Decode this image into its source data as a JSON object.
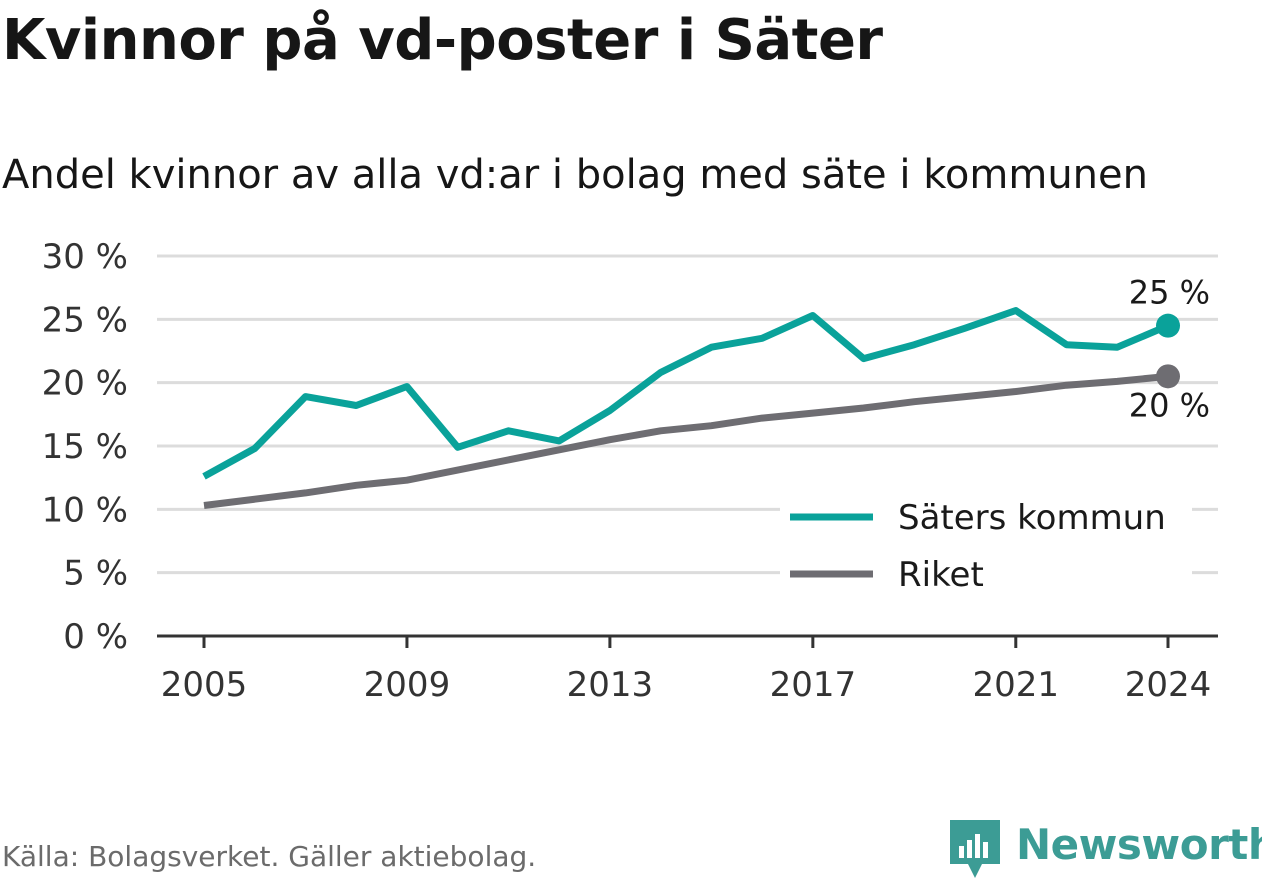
{
  "title": "Kvinnor på vd-poster i Säter",
  "subtitle": "Andel kvinnor av alla vd:ar i bolag med säte i kommunen",
  "source": "Källa: Bolagsverket. Gäller aktiebolag.",
  "brand": "Newsworthy",
  "colors": {
    "kommun": "#0aa29a",
    "riket": "#6e6d72",
    "grid": "#dcdcdc",
    "axis": "#333333",
    "brand": "#3c9c95"
  },
  "chart_data": {
    "type": "line",
    "x": [
      2005,
      2006,
      2007,
      2008,
      2009,
      2010,
      2011,
      2012,
      2013,
      2014,
      2015,
      2016,
      2017,
      2018,
      2019,
      2020,
      2021,
      2022,
      2023,
      2024
    ],
    "series": [
      {
        "name": "Säters kommun",
        "color": "#0aa29a",
        "values": [
          12.6,
          14.8,
          18.9,
          18.2,
          19.7,
          14.9,
          16.2,
          15.4,
          17.8,
          20.8,
          22.8,
          23.5,
          25.3,
          21.9,
          23.0,
          24.3,
          25.7,
          23.0,
          22.8,
          24.5
        ]
      },
      {
        "name": "Riket",
        "color": "#6e6d72",
        "values": [
          10.3,
          10.8,
          11.3,
          11.9,
          12.3,
          13.1,
          13.9,
          14.7,
          15.5,
          16.2,
          16.6,
          17.2,
          17.6,
          18.0,
          18.5,
          18.9,
          19.3,
          19.8,
          20.1,
          20.5
        ]
      }
    ],
    "ylim": [
      0,
      30
    ],
    "y_ticks": [
      0,
      5,
      10,
      15,
      20,
      25,
      30
    ],
    "y_tick_labels": [
      "0 %",
      "5 %",
      "10 %",
      "15 %",
      "20 %",
      "25 %",
      "30 %"
    ],
    "x_ticks": [
      2005,
      2009,
      2013,
      2017,
      2021,
      2024
    ],
    "x_tick_labels": [
      "2005",
      "2009",
      "2013",
      "2017",
      "2021",
      "2024"
    ],
    "end_labels": [
      "25 %",
      "20 %"
    ],
    "grid": true,
    "legend_position": "bottom-right"
  }
}
